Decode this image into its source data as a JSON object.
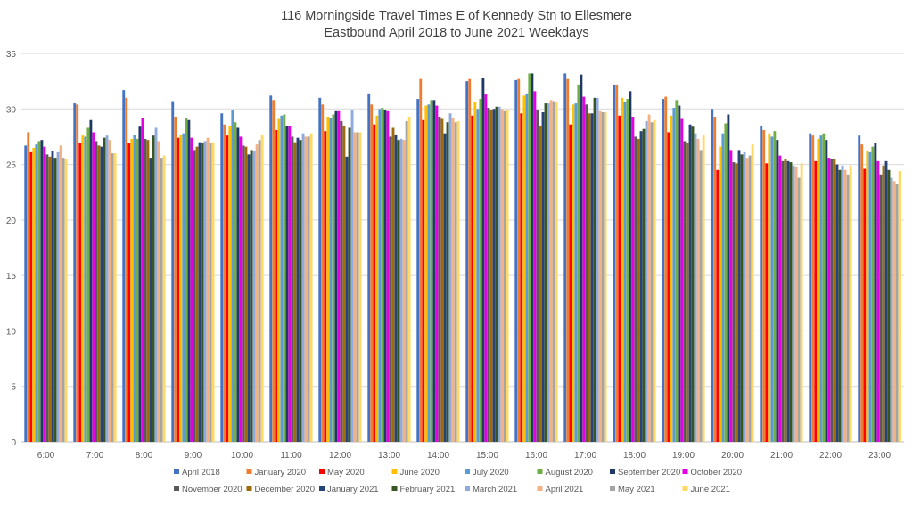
{
  "chart_data": {
    "type": "bar",
    "title": "116 Morningside Travel Times E of Kennedy Stn to Ellesmere",
    "subtitle": "Eastbound April 2018 to June 2021 Weekdays",
    "xlabel": "",
    "ylabel": "",
    "ylim": [
      0,
      35
    ],
    "yticks": [
      0,
      5,
      10,
      15,
      20,
      25,
      30,
      35
    ],
    "grid": true,
    "legend_position": "bottom",
    "categories": [
      "6:00",
      "7:00",
      "8:00",
      "9:00",
      "10:00",
      "11:00",
      "12:00",
      "13:00",
      "14:00",
      "15:00",
      "16:00",
      "17:00",
      "18:00",
      "19:00",
      "20:00",
      "21:00",
      "22:00",
      "23:00"
    ],
    "series": [
      {
        "name": "April 2018",
        "color": "#4472C4",
        "values": [
          26.7,
          30.5,
          31.7,
          30.7,
          29.6,
          31.2,
          31.0,
          31.4,
          30.9,
          32.5,
          32.6,
          33.2,
          32.2,
          30.9,
          30.0,
          28.5,
          27.8,
          27.6
        ]
      },
      {
        "name": "January 2020",
        "color": "#ED7D31",
        "values": [
          27.9,
          30.4,
          31.0,
          29.3,
          28.6,
          30.8,
          30.4,
          30.4,
          32.7,
          32.7,
          32.7,
          32.7,
          32.2,
          31.1,
          29.3,
          28.1,
          27.6,
          26.8
        ]
      },
      {
        "name": "May 2020",
        "color": "#FF0000",
        "values": [
          26.1,
          26.9,
          26.9,
          27.4,
          27.6,
          28.1,
          28.0,
          28.6,
          29.0,
          29.4,
          29.6,
          28.6,
          29.4,
          27.9,
          24.5,
          25.1,
          25.3,
          24.6
        ]
      },
      {
        "name": "June 2020",
        "color": "#FFC000",
        "values": [
          26.5,
          27.6,
          27.3,
          27.7,
          28.5,
          29.1,
          29.3,
          29.4,
          30.3,
          30.6,
          31.2,
          30.4,
          31.0,
          29.4,
          26.6,
          27.8,
          27.3,
          26.2
        ]
      },
      {
        "name": "July 2020",
        "color": "#5B9BD5",
        "values": [
          26.8,
          27.5,
          27.7,
          27.8,
          29.9,
          29.4,
          29.2,
          30.0,
          30.4,
          30.0,
          31.4,
          30.5,
          30.6,
          30.1,
          27.8,
          27.5,
          27.6,
          26.1
        ]
      },
      {
        "name": "August 2020",
        "color": "#70AD47",
        "values": [
          27.1,
          28.3,
          27.3,
          29.2,
          28.8,
          29.5,
          29.5,
          30.1,
          30.8,
          30.9,
          33.2,
          32.2,
          30.9,
          30.8,
          28.7,
          28.0,
          27.8,
          26.6
        ]
      },
      {
        "name": "September 2020",
        "color": "#203864",
        "values": [
          27.2,
          29.0,
          28.4,
          29.0,
          28.3,
          28.5,
          29.8,
          29.9,
          30.8,
          32.8,
          33.2,
          33.1,
          31.6,
          30.3,
          29.5,
          27.2,
          27.2,
          26.9
        ]
      },
      {
        "name": "October 2020",
        "color": "#E600E6",
        "values": [
          26.6,
          27.9,
          29.2,
          27.4,
          27.5,
          28.5,
          29.8,
          29.8,
          30.3,
          31.3,
          31.6,
          31.1,
          29.3,
          29.1,
          26.3,
          25.8,
          25.6,
          25.3
        ]
      },
      {
        "name": "November 2020",
        "color": "#595959",
        "values": [
          25.9,
          27.1,
          27.3,
          26.3,
          26.7,
          27.5,
          28.9,
          27.5,
          29.3,
          30.1,
          29.9,
          30.4,
          27.5,
          27.1,
          25.2,
          25.3,
          25.5,
          24.1
        ]
      },
      {
        "name": "December 2020",
        "color": "#9E6A0A",
        "values": [
          25.7,
          26.7,
          27.2,
          26.6,
          26.6,
          27.0,
          28.5,
          28.3,
          29.1,
          29.9,
          28.5,
          29.6,
          27.3,
          26.9,
          25.1,
          25.5,
          25.5,
          24.9
        ]
      },
      {
        "name": "January 2021",
        "color": "#264478",
        "values": [
          26.2,
          26.6,
          25.6,
          27.0,
          25.9,
          27.4,
          25.7,
          27.7,
          27.8,
          30.0,
          29.7,
          29.6,
          28.0,
          28.6,
          26.3,
          25.3,
          25.0,
          25.3
        ]
      },
      {
        "name": "February 2021",
        "color": "#375623",
        "values": [
          25.6,
          27.4,
          27.6,
          26.9,
          26.3,
          27.2,
          28.3,
          27.2,
          28.8,
          30.2,
          30.5,
          31.0,
          28.2,
          28.4,
          25.9,
          25.2,
          24.5,
          24.5
        ]
      },
      {
        "name": "March 2021",
        "color": "#8FAADC",
        "values": [
          26.1,
          27.6,
          28.3,
          27.1,
          26.2,
          27.8,
          29.9,
          27.3,
          29.6,
          30.2,
          30.5,
          31.0,
          28.9,
          27.8,
          26.1,
          24.9,
          24.9,
          23.8
        ]
      },
      {
        "name": "April 2021",
        "color": "#F4B183",
        "values": [
          26.7,
          27.2,
          27.1,
          27.4,
          26.8,
          27.5,
          27.9,
          27.2,
          29.2,
          30.0,
          30.8,
          29.8,
          29.5,
          27.3,
          25.6,
          24.8,
          24.5,
          23.5
        ]
      },
      {
        "name": "May 2021",
        "color": "#A5A5A5",
        "values": [
          25.6,
          26.0,
          25.6,
          26.9,
          27.2,
          27.5,
          27.9,
          28.9,
          28.8,
          29.8,
          30.7,
          29.7,
          28.8,
          26.3,
          25.8,
          23.8,
          24.1,
          23.2
        ]
      },
      {
        "name": "June 2021",
        "color": "#FFD966",
        "values": [
          25.5,
          26.0,
          25.8,
          27.0,
          27.7,
          27.8,
          27.9,
          29.3,
          28.9,
          29.9,
          30.6,
          29.7,
          29.0,
          27.6,
          26.8,
          25.1,
          24.9,
          24.4
        ]
      }
    ]
  }
}
